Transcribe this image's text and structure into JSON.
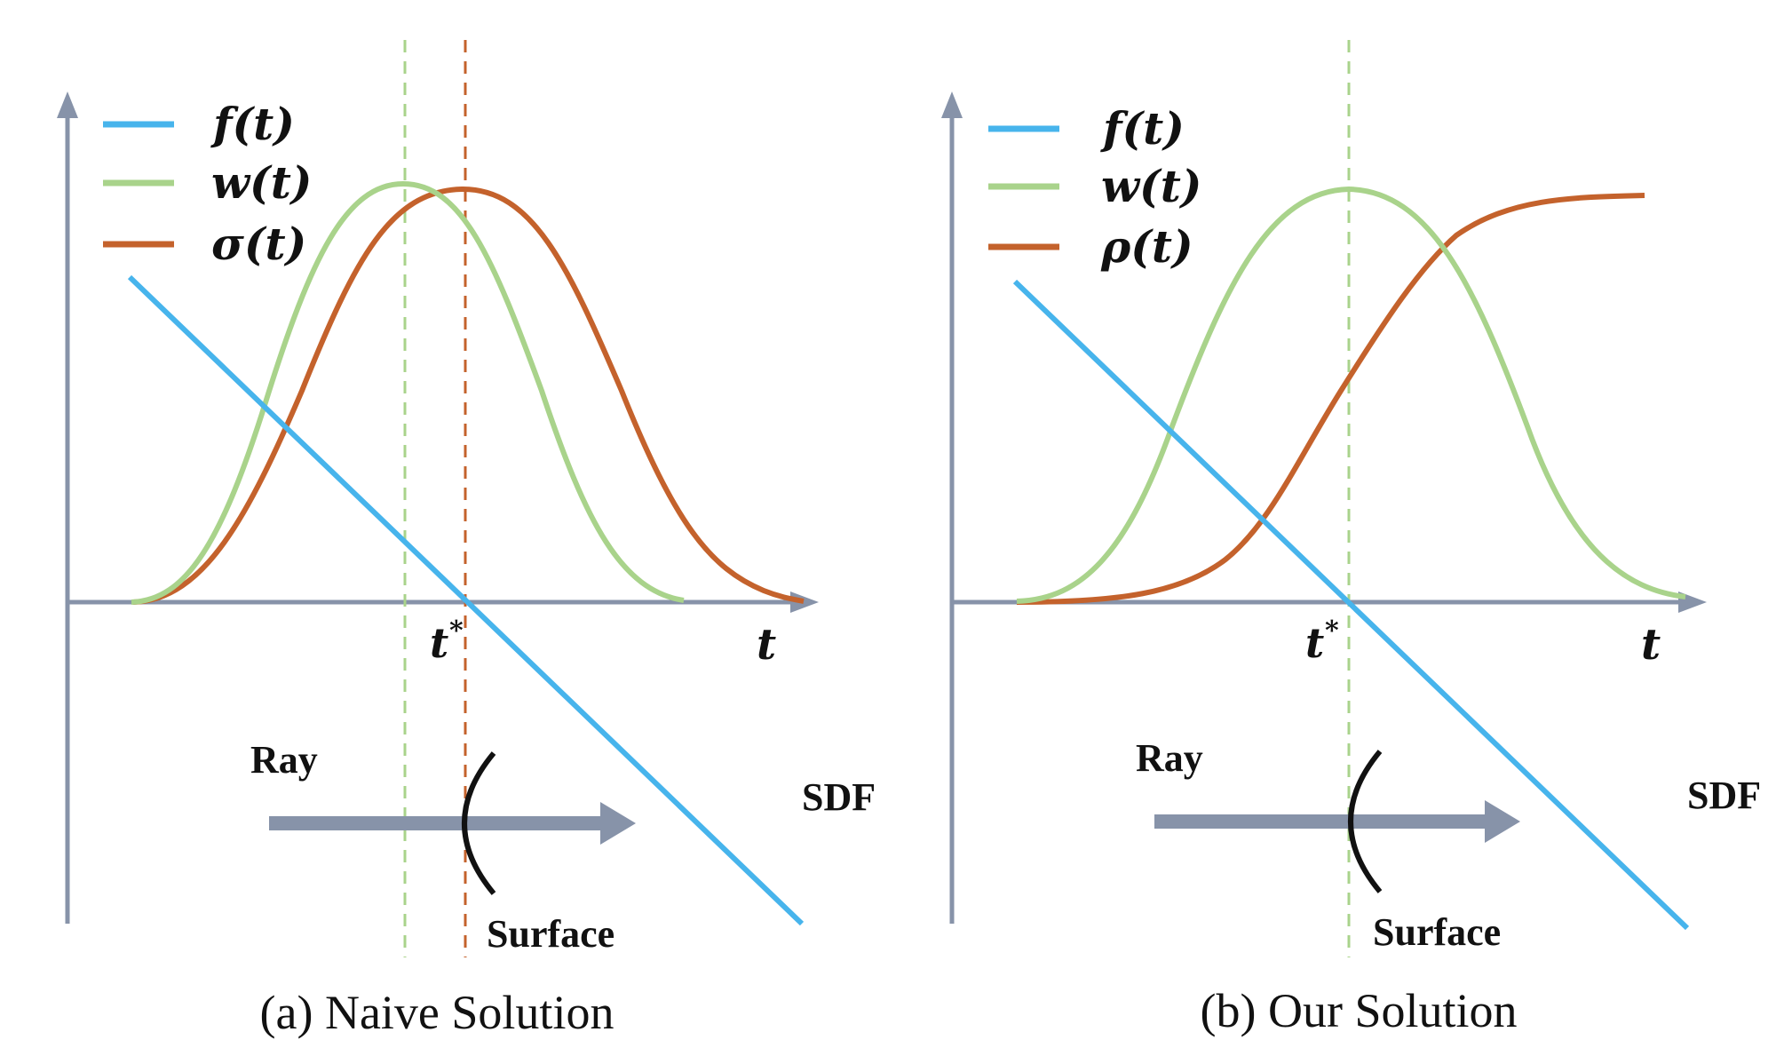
{
  "colors": {
    "axis": "#8793a9",
    "f": "#47b4ec",
    "w": "#a9d38b",
    "sigma": "#c4622c",
    "surface": "#111111"
  },
  "panels": [
    {
      "caption": "(a) Naive Solution",
      "legend": [
        {
          "label": "f(t)",
          "color": "#47b4ec"
        },
        {
          "label": "w(t)",
          "color": "#a9d38b"
        },
        {
          "label": "σ(t)",
          "color": "#c4622c"
        }
      ],
      "t_star_label": "t",
      "t_star_sup": "*",
      "t_axis_label": "t",
      "ray_label": "Ray",
      "surface_label": "Surface",
      "sdf_label": "SDF"
    },
    {
      "caption": "(b) Our Solution",
      "legend": [
        {
          "label": "f(t)",
          "color": "#47b4ec"
        },
        {
          "label": "w(t)",
          "color": "#a9d38b"
        },
        {
          "label": "ρ(t)",
          "color": "#c4622c"
        }
      ],
      "t_star_label": "t",
      "t_star_sup": "*",
      "t_axis_label": "t",
      "ray_label": "Ray",
      "surface_label": "Surface",
      "sdf_label": "SDF"
    }
  ]
}
